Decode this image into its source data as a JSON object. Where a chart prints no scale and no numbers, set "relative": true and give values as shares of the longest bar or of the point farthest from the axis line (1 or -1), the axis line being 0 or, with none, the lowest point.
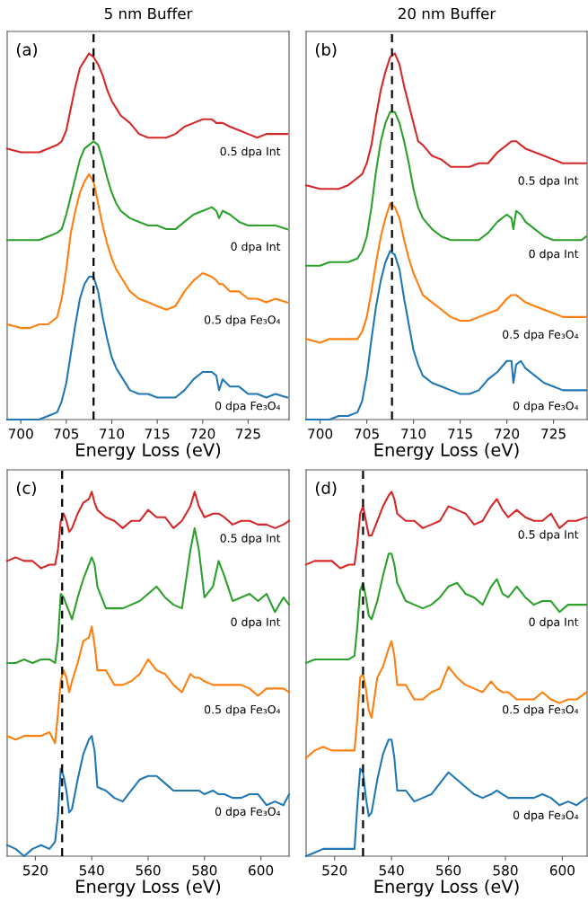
{
  "chart_data": [
    {
      "type": "line",
      "title": "5 nm Buffer",
      "xlabel": "Energy Loss (eV)",
      "relative": true,
      "tick_labels": "x",
      "annotations": [
        "(a)"
      ],
      "xlim": [
        698.5,
        729.5
      ],
      "xticks": [
        700,
        705,
        710,
        715,
        720,
        725
      ],
      "ref_lines": [
        {
          "axis": "x",
          "value": 708,
          "color": "#000000",
          "line_style": "dashed"
        }
      ],
      "x": [
        698.5,
        700,
        701,
        702,
        703,
        704,
        704.5,
        705,
        705.5,
        706,
        706.5,
        707,
        707.5,
        708,
        708.5,
        709,
        709.5,
        710,
        710.5,
        711,
        712,
        713,
        714,
        715,
        716,
        717,
        718,
        719,
        720,
        721,
        721.5,
        721.8,
        722.2,
        723,
        724,
        725,
        726,
        727,
        728,
        729.3
      ],
      "series": [
        {
          "name": "0.5 dpa Int",
          "color": "#d62728",
          "values": [
            0.74,
            0.73,
            0.73,
            0.73,
            0.74,
            0.75,
            0.76,
            0.79,
            0.85,
            0.91,
            0.96,
            0.98,
            1.0,
            0.99,
            0.97,
            0.94,
            0.9,
            0.87,
            0.85,
            0.83,
            0.81,
            0.78,
            0.77,
            0.77,
            0.77,
            0.78,
            0.8,
            0.81,
            0.82,
            0.82,
            0.81,
            0.81,
            0.81,
            0.8,
            0.79,
            0.78,
            0.77,
            0.78,
            0.78,
            0.78
          ]
        },
        {
          "name": "0 dpa Int",
          "color": "#2ca02c",
          "values": [
            0.49,
            0.49,
            0.49,
            0.49,
            0.5,
            0.51,
            0.52,
            0.56,
            0.61,
            0.66,
            0.71,
            0.74,
            0.75,
            0.76,
            0.75,
            0.71,
            0.66,
            0.62,
            0.59,
            0.57,
            0.55,
            0.54,
            0.53,
            0.53,
            0.52,
            0.52,
            0.54,
            0.56,
            0.57,
            0.58,
            0.57,
            0.55,
            0.57,
            0.56,
            0.54,
            0.53,
            0.53,
            0.53,
            0.53,
            0.52
          ]
        },
        {
          "name": "0.5 dpa Fe₃O₄",
          "color": "#ff7f0e",
          "values": [
            0.26,
            0.25,
            0.25,
            0.26,
            0.26,
            0.28,
            0.33,
            0.41,
            0.51,
            0.57,
            0.62,
            0.65,
            0.67,
            0.65,
            0.59,
            0.53,
            0.48,
            0.44,
            0.41,
            0.39,
            0.35,
            0.33,
            0.32,
            0.31,
            0.3,
            0.31,
            0.35,
            0.38,
            0.4,
            0.39,
            0.38,
            0.37,
            0.37,
            0.35,
            0.35,
            0.33,
            0.33,
            0.32,
            0.33,
            0.32
          ]
        },
        {
          "name": "0 dpa Fe₃O₄",
          "color": "#1f77b4",
          "values": [
            0.0,
            0.0,
            0.0,
            0.0,
            0.01,
            0.02,
            0.05,
            0.1,
            0.18,
            0.26,
            0.33,
            0.37,
            0.39,
            0.39,
            0.35,
            0.28,
            0.22,
            0.17,
            0.14,
            0.12,
            0.08,
            0.07,
            0.07,
            0.06,
            0.06,
            0.06,
            0.08,
            0.11,
            0.13,
            0.13,
            0.12,
            0.08,
            0.11,
            0.09,
            0.09,
            0.07,
            0.07,
            0.06,
            0.07,
            0.06
          ]
        }
      ]
    },
    {
      "type": "line",
      "title": "20 nm Buffer",
      "xlabel": "Energy Loss (eV)",
      "relative": true,
      "tick_labels": "x",
      "annotations": [
        "(b)"
      ],
      "xlim": [
        698.5,
        728.6
      ],
      "xticks": [
        700,
        705,
        710,
        715,
        720,
        725
      ],
      "ref_lines": [
        {
          "axis": "x",
          "value": 707.7,
          "color": "#000000",
          "line_style": "dashed"
        }
      ],
      "x": [
        698.5,
        700,
        701,
        702,
        703,
        704,
        704.5,
        705,
        705.5,
        706,
        706.5,
        707,
        707.5,
        708,
        708.5,
        709,
        709.5,
        710,
        710.5,
        711,
        712,
        713,
        714,
        715,
        716,
        717,
        718,
        719,
        720,
        720.5,
        720.7,
        721,
        721.5,
        722,
        723,
        724,
        725,
        726,
        727,
        728,
        728.5
      ],
      "series": [
        {
          "name": "0.5 dpa Int",
          "color": "#d62728",
          "values": [
            0.64,
            0.63,
            0.63,
            0.63,
            0.64,
            0.66,
            0.67,
            0.7,
            0.75,
            0.83,
            0.9,
            0.95,
            0.99,
            1.0,
            0.97,
            0.91,
            0.86,
            0.81,
            0.76,
            0.75,
            0.72,
            0.71,
            0.69,
            0.69,
            0.69,
            0.7,
            0.7,
            0.73,
            0.75,
            0.76,
            0.76,
            0.76,
            0.75,
            0.74,
            0.73,
            0.72,
            0.71,
            0.7,
            0.7,
            0.7,
            0.7
          ]
        },
        {
          "name": "0 dpa Int",
          "color": "#2ca02c",
          "values": [
            0.42,
            0.42,
            0.43,
            0.43,
            0.43,
            0.44,
            0.46,
            0.5,
            0.58,
            0.68,
            0.76,
            0.81,
            0.84,
            0.84,
            0.81,
            0.76,
            0.7,
            0.63,
            0.58,
            0.55,
            0.52,
            0.5,
            0.49,
            0.49,
            0.49,
            0.49,
            0.51,
            0.54,
            0.56,
            0.55,
            0.52,
            0.57,
            0.56,
            0.54,
            0.52,
            0.5,
            0.49,
            0.49,
            0.49,
            0.49,
            0.5
          ]
        },
        {
          "name": "0.5 dpa Fe₃O₄",
          "color": "#ff7f0e",
          "values": [
            0.22,
            0.21,
            0.22,
            0.22,
            0.22,
            0.22,
            0.24,
            0.28,
            0.35,
            0.43,
            0.5,
            0.55,
            0.59,
            0.58,
            0.55,
            0.49,
            0.44,
            0.4,
            0.37,
            0.34,
            0.32,
            0.3,
            0.28,
            0.27,
            0.27,
            0.28,
            0.29,
            0.3,
            0.33,
            0.34,
            0.34,
            0.34,
            0.33,
            0.32,
            0.31,
            0.3,
            0.29,
            0.28,
            0.28,
            0.28,
            0.28
          ]
        },
        {
          "name": "0 dpa Fe₃O₄",
          "color": "#1f77b4",
          "values": [
            0.0,
            0.0,
            0.0,
            0.01,
            0.01,
            0.02,
            0.05,
            0.12,
            0.22,
            0.31,
            0.38,
            0.43,
            0.46,
            0.45,
            0.41,
            0.33,
            0.26,
            0.19,
            0.15,
            0.12,
            0.1,
            0.09,
            0.08,
            0.07,
            0.07,
            0.08,
            0.11,
            0.13,
            0.16,
            0.16,
            0.1,
            0.15,
            0.16,
            0.14,
            0.12,
            0.1,
            0.09,
            0.08,
            0.08,
            0.08,
            0.08
          ]
        }
      ]
    },
    {
      "type": "line",
      "xlabel": "Energy Loss (eV)",
      "relative": true,
      "tick_labels": "x",
      "annotations": [
        "(c)"
      ],
      "xlim": [
        510,
        610
      ],
      "xticks": [
        520,
        540,
        560,
        580,
        600
      ],
      "ref_lines": [
        {
          "axis": "x",
          "value": 529.5,
          "color": "#000000",
          "line_style": "dashed"
        }
      ],
      "x": [
        510,
        513,
        516,
        519,
        522,
        525,
        527,
        528,
        529,
        530,
        531,
        532,
        533,
        535,
        537,
        539,
        540,
        541,
        542,
        545,
        548,
        551,
        554,
        557,
        560,
        563,
        566,
        569,
        572,
        575,
        576.5,
        578,
        580,
        583,
        585,
        587,
        590,
        593,
        596,
        599,
        602,
        605,
        608,
        610
      ],
      "series": [
        {
          "name": "0.5 dpa Int",
          "color": "#d62728",
          "values": [
            0.81,
            0.82,
            0.81,
            0.81,
            0.79,
            0.8,
            0.8,
            0.84,
            0.92,
            0.94,
            0.92,
            0.89,
            0.9,
            0.94,
            0.97,
            0.98,
            1.0,
            0.97,
            0.95,
            0.93,
            0.92,
            0.9,
            0.92,
            0.92,
            0.95,
            0.93,
            0.93,
            0.9,
            0.92,
            0.96,
            1.0,
            0.96,
            0.93,
            0.94,
            0.94,
            0.93,
            0.91,
            0.92,
            0.92,
            0.91,
            0.91,
            0.9,
            0.91,
            0.92
          ]
        },
        {
          "name": "0 dpa Int",
          "color": "#2ca02c",
          "values": [
            0.53,
            0.53,
            0.54,
            0.53,
            0.54,
            0.54,
            0.53,
            0.59,
            0.72,
            0.71,
            0.69,
            0.67,
            0.65,
            0.71,
            0.76,
            0.8,
            0.82,
            0.8,
            0.74,
            0.68,
            0.68,
            0.68,
            0.69,
            0.7,
            0.72,
            0.74,
            0.71,
            0.69,
            0.68,
            0.84,
            0.9,
            0.84,
            0.71,
            0.74,
            0.81,
            0.77,
            0.7,
            0.71,
            0.72,
            0.7,
            0.72,
            0.67,
            0.71,
            0.69
          ]
        },
        {
          "name": "0.5 dpa Fe₃O₄",
          "color": "#ff7f0e",
          "values": [
            0.33,
            0.32,
            0.33,
            0.33,
            0.33,
            0.34,
            0.31,
            0.39,
            0.48,
            0.51,
            0.49,
            0.45,
            0.48,
            0.53,
            0.59,
            0.6,
            0.63,
            0.58,
            0.51,
            0.51,
            0.47,
            0.47,
            0.48,
            0.5,
            0.54,
            0.51,
            0.5,
            0.47,
            0.45,
            0.5,
            0.49,
            0.49,
            0.48,
            0.47,
            0.47,
            0.47,
            0.47,
            0.47,
            0.46,
            0.44,
            0.46,
            0.46,
            0.46,
            0.45
          ]
        },
        {
          "name": "0 dpa Fe₃O₄",
          "color": "#1f77b4",
          "values": [
            0.03,
            0.02,
            0.0,
            0.02,
            0.03,
            0.02,
            0.04,
            0.11,
            0.24,
            0.22,
            0.18,
            0.12,
            0.13,
            0.21,
            0.28,
            0.32,
            0.33,
            0.29,
            0.19,
            0.18,
            0.16,
            0.15,
            0.18,
            0.21,
            0.22,
            0.22,
            0.2,
            0.18,
            0.18,
            0.18,
            0.18,
            0.18,
            0.17,
            0.18,
            0.17,
            0.17,
            0.16,
            0.16,
            0.17,
            0.17,
            0.14,
            0.15,
            0.14,
            0.17
          ]
        }
      ]
    },
    {
      "type": "line",
      "xlabel": "Energy Loss (eV)",
      "relative": true,
      "tick_labels": "x",
      "annotations": [
        "(d)"
      ],
      "xlim": [
        510,
        608.7
      ],
      "xticks": [
        520,
        540,
        560,
        580,
        600
      ],
      "ref_lines": [
        {
          "axis": "x",
          "value": 530,
          "color": "#000000",
          "line_style": "dashed"
        }
      ],
      "x": [
        510,
        513,
        516,
        519,
        522,
        525,
        527,
        528,
        529,
        530,
        531,
        532,
        533,
        535,
        537,
        539,
        540,
        541,
        542,
        545,
        548,
        551,
        554,
        557,
        560,
        563,
        566,
        569,
        572,
        575,
        577,
        579,
        581,
        584,
        587,
        590,
        593,
        596,
        599,
        602,
        605,
        608.5
      ],
      "series": [
        {
          "name": "0.5 dpa Int",
          "color": "#d62728",
          "values": [
            0.8,
            0.81,
            0.81,
            0.81,
            0.79,
            0.8,
            0.8,
            0.86,
            0.94,
            0.96,
            0.92,
            0.88,
            0.88,
            0.92,
            0.96,
            0.99,
            1.0,
            0.98,
            0.94,
            0.92,
            0.92,
            0.9,
            0.91,
            0.92,
            0.96,
            0.95,
            0.94,
            0.91,
            0.92,
            0.96,
            0.98,
            0.95,
            0.93,
            0.95,
            0.93,
            0.92,
            0.92,
            0.94,
            0.9,
            0.92,
            0.92,
            0.93
          ]
        },
        {
          "name": "0 dpa Int",
          "color": "#2ca02c",
          "values": [
            0.53,
            0.54,
            0.54,
            0.54,
            0.54,
            0.54,
            0.55,
            0.63,
            0.73,
            0.75,
            0.71,
            0.66,
            0.65,
            0.7,
            0.77,
            0.83,
            0.83,
            0.8,
            0.75,
            0.7,
            0.69,
            0.68,
            0.69,
            0.71,
            0.74,
            0.75,
            0.72,
            0.71,
            0.69,
            0.74,
            0.76,
            0.72,
            0.71,
            0.74,
            0.71,
            0.69,
            0.7,
            0.7,
            0.67,
            0.69,
            0.69,
            0.69
          ]
        },
        {
          "name": "0.5 dpa Fe₃O₄",
          "color": "#ff7f0e",
          "values": [
            0.27,
            0.29,
            0.3,
            0.29,
            0.29,
            0.29,
            0.29,
            0.38,
            0.49,
            0.5,
            0.46,
            0.4,
            0.38,
            0.49,
            0.52,
            0.57,
            0.59,
            0.55,
            0.47,
            0.47,
            0.43,
            0.43,
            0.45,
            0.46,
            0.52,
            0.49,
            0.47,
            0.46,
            0.45,
            0.48,
            0.46,
            0.45,
            0.45,
            0.43,
            0.43,
            0.43,
            0.45,
            0.43,
            0.42,
            0.43,
            0.43,
            0.45
          ]
        },
        {
          "name": "0 dpa Fe₃O₄",
          "color": "#1f77b4",
          "values": [
            0.0,
            0.01,
            0.02,
            0.02,
            0.02,
            0.02,
            0.02,
            0.14,
            0.24,
            0.23,
            0.16,
            0.11,
            0.12,
            0.21,
            0.28,
            0.32,
            0.32,
            0.27,
            0.18,
            0.18,
            0.15,
            0.16,
            0.17,
            0.2,
            0.23,
            0.21,
            0.19,
            0.17,
            0.16,
            0.17,
            0.18,
            0.17,
            0.16,
            0.16,
            0.16,
            0.16,
            0.17,
            0.16,
            0.14,
            0.15,
            0.14,
            0.16
          ]
        }
      ]
    }
  ]
}
